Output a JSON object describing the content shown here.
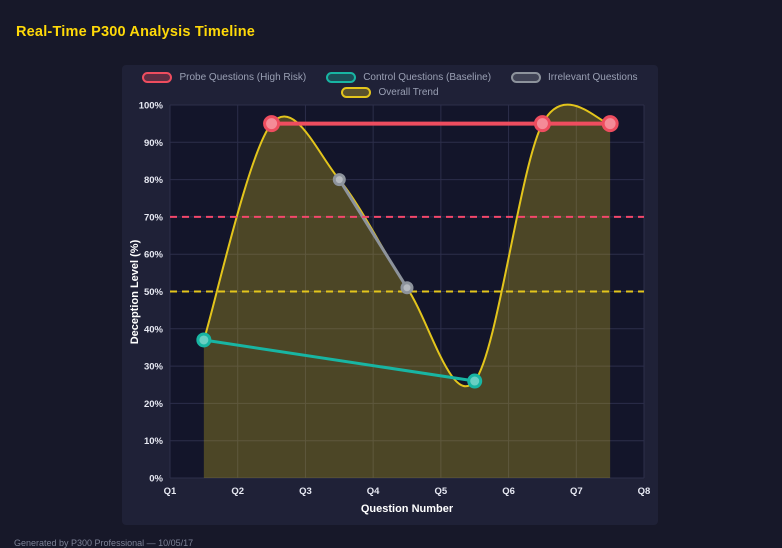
{
  "page": {
    "title": "Real-Time P300 Analysis Timeline",
    "footer": "Generated by P300 Professional — 10/05/17"
  },
  "chart_data": {
    "type": "line",
    "title": "Real-Time P300 Analysis Timeline",
    "xlabel": "Question Number",
    "ylabel": "Deception Level (%)",
    "x_ticks": [
      "Q1",
      "Q2",
      "Q3",
      "Q4",
      "Q5",
      "Q6",
      "Q7",
      "Q8"
    ],
    "x_range": [
      1,
      8
    ],
    "ylim": [
      0,
      100
    ],
    "y_tick_step": 10,
    "y_tick_suffix": "%",
    "grid": true,
    "legend_position": "top",
    "legend_rows": [
      [
        "Probe Questions (High Risk)",
        "Control Questions (Baseline)",
        "Irrelevant Questions"
      ],
      [
        "Overall Trend"
      ]
    ],
    "series": [
      {
        "name": "Probe Questions (High Risk)",
        "color": "#ee4d5f",
        "points": [
          [
            2.5,
            95
          ],
          [
            6.5,
            95
          ],
          [
            7.5,
            95
          ]
        ],
        "line_width": 4,
        "marker_radius": 7,
        "smooth": false,
        "area": false
      },
      {
        "name": "Control Questions (Baseline)",
        "color": "#18b5a3",
        "points": [
          [
            1.5,
            37
          ],
          [
            5.5,
            26
          ]
        ],
        "line_width": 3,
        "marker_radius": 6,
        "smooth": false,
        "area": false
      },
      {
        "name": "Irrelevant Questions",
        "color": "#8d939c",
        "points": [
          [
            3.5,
            80
          ],
          [
            4.5,
            51
          ]
        ],
        "line_width": 3,
        "marker_radius": 5,
        "smooth": false,
        "area": false
      },
      {
        "name": "Overall Trend",
        "color": "#e3c51c",
        "points": [
          [
            1.5,
            37
          ],
          [
            2.5,
            95
          ],
          [
            3.5,
            80
          ],
          [
            4.5,
            51
          ],
          [
            5.5,
            26
          ],
          [
            6.5,
            95
          ],
          [
            7.5,
            95
          ]
        ],
        "line_width": 2,
        "marker_radius": 0,
        "smooth": true,
        "area": true,
        "area_opacity": 0.28
      }
    ],
    "thresholds": [
      {
        "value": 70,
        "color": "#f3476b",
        "style": "dashed"
      },
      {
        "value": 50,
        "color": "#e3c51c",
        "style": "dashed"
      }
    ],
    "colors": {
      "plot_bg": "#13152a",
      "panel_bg": "#1f2137",
      "gridline": "#2c2e4a",
      "tick_text": "#e6e8f2"
    }
  }
}
